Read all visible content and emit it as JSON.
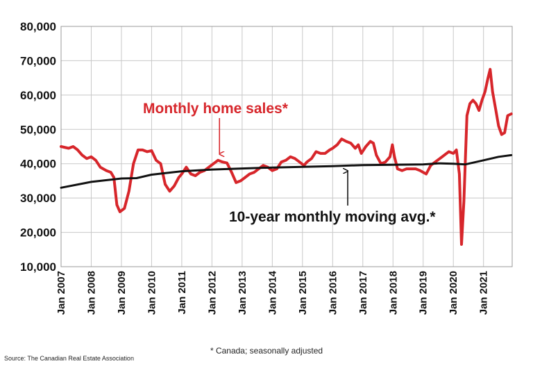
{
  "chart_data": {
    "type": "line",
    "title": "",
    "xlabel": "",
    "ylabel": "",
    "ylim": [
      10000,
      80000
    ],
    "yticks": [
      "10,000",
      "20,000",
      "30,000",
      "40,000",
      "50,000",
      "60,000",
      "70,000",
      "80,000"
    ],
    "ytick_values": [
      10000,
      20000,
      30000,
      40000,
      50000,
      60000,
      70000,
      80000
    ],
    "xticks": [
      "Jan 2007",
      "Jan 2008",
      "Jan 2009",
      "Jan 2010",
      "Jan 2011",
      "Jan 2012",
      "Jan 2013",
      "Jan 2014",
      "Jan 2015",
      "Jan 2016",
      "Jan 2017",
      "Jan 2018",
      "Jan 2019",
      "Jan 2020",
      "Jan 2021"
    ],
    "xtick_values": [
      2007,
      2008,
      2009,
      2010,
      2011,
      2012,
      2013,
      2014,
      2015,
      2016,
      2017,
      2018,
      2019,
      2020,
      2021
    ],
    "xlim": [
      2007,
      2021.95
    ],
    "grid": true,
    "series": [
      {
        "name": "Monthly home sales*",
        "color": "#d7262b",
        "points": [
          [
            2007.0,
            45000
          ],
          [
            2007.25,
            44500
          ],
          [
            2007.4,
            45000
          ],
          [
            2007.55,
            44000
          ],
          [
            2007.7,
            42500
          ],
          [
            2007.85,
            41500
          ],
          [
            2008.0,
            42000
          ],
          [
            2008.15,
            41000
          ],
          [
            2008.3,
            39000
          ],
          [
            2008.5,
            38000
          ],
          [
            2008.65,
            37500
          ],
          [
            2008.75,
            36000
          ],
          [
            2008.85,
            28000
          ],
          [
            2008.95,
            26000
          ],
          [
            2009.1,
            27000
          ],
          [
            2009.25,
            32000
          ],
          [
            2009.4,
            40000
          ],
          [
            2009.55,
            44000
          ],
          [
            2009.7,
            44000
          ],
          [
            2009.85,
            43500
          ],
          [
            2010.0,
            43800
          ],
          [
            2010.15,
            41000
          ],
          [
            2010.3,
            40000
          ],
          [
            2010.45,
            34000
          ],
          [
            2010.6,
            32000
          ],
          [
            2010.75,
            33500
          ],
          [
            2010.9,
            36000
          ],
          [
            2011.0,
            37000
          ],
          [
            2011.15,
            39000
          ],
          [
            2011.3,
            37000
          ],
          [
            2011.45,
            36500
          ],
          [
            2011.6,
            37500
          ],
          [
            2011.75,
            38000
          ],
          [
            2011.9,
            39000
          ],
          [
            2012.05,
            40000
          ],
          [
            2012.2,
            41000
          ],
          [
            2012.35,
            40500
          ],
          [
            2012.5,
            40200
          ],
          [
            2012.65,
            37500
          ],
          [
            2012.8,
            34500
          ],
          [
            2012.95,
            35000
          ],
          [
            2013.1,
            36000
          ],
          [
            2013.25,
            37000
          ],
          [
            2013.4,
            37500
          ],
          [
            2013.55,
            38500
          ],
          [
            2013.7,
            39500
          ],
          [
            2013.85,
            39000
          ],
          [
            2014.0,
            38000
          ],
          [
            2014.15,
            38500
          ],
          [
            2014.3,
            40500
          ],
          [
            2014.45,
            41000
          ],
          [
            2014.6,
            42000
          ],
          [
            2014.75,
            41500
          ],
          [
            2014.9,
            40500
          ],
          [
            2015.05,
            39500
          ],
          [
            2015.15,
            40500
          ],
          [
            2015.3,
            41500
          ],
          [
            2015.45,
            43500
          ],
          [
            2015.6,
            43000
          ],
          [
            2015.75,
            43000
          ],
          [
            2015.9,
            44000
          ],
          [
            2016.0,
            44500
          ],
          [
            2016.15,
            45500
          ],
          [
            2016.3,
            47200
          ],
          [
            2016.45,
            46500
          ],
          [
            2016.6,
            46000
          ],
          [
            2016.75,
            44500
          ],
          [
            2016.85,
            45500
          ],
          [
            2016.95,
            43000
          ],
          [
            2017.1,
            45000
          ],
          [
            2017.25,
            46500
          ],
          [
            2017.35,
            46000
          ],
          [
            2017.45,
            42500
          ],
          [
            2017.6,
            40000
          ],
          [
            2017.75,
            40500
          ],
          [
            2017.9,
            42000
          ],
          [
            2017.98,
            45500
          ],
          [
            2018.05,
            42000
          ],
          [
            2018.15,
            38500
          ],
          [
            2018.3,
            38000
          ],
          [
            2018.45,
            38500
          ],
          [
            2018.6,
            38500
          ],
          [
            2018.75,
            38500
          ],
          [
            2018.9,
            38000
          ],
          [
            2019.0,
            37500
          ],
          [
            2019.1,
            37000
          ],
          [
            2019.25,
            39500
          ],
          [
            2019.4,
            40500
          ],
          [
            2019.55,
            41500
          ],
          [
            2019.7,
            42500
          ],
          [
            2019.85,
            43500
          ],
          [
            2020.0,
            43000
          ],
          [
            2020.1,
            44000
          ],
          [
            2020.2,
            37000
          ],
          [
            2020.27,
            16500
          ],
          [
            2020.35,
            29000
          ],
          [
            2020.45,
            54000
          ],
          [
            2020.55,
            57500
          ],
          [
            2020.65,
            58500
          ],
          [
            2020.75,
            57500
          ],
          [
            2020.85,
            55500
          ],
          [
            2020.95,
            58500
          ],
          [
            2021.05,
            61000
          ],
          [
            2021.15,
            65000
          ],
          [
            2021.22,
            67500
          ],
          [
            2021.3,
            61000
          ],
          [
            2021.4,
            56000
          ],
          [
            2021.5,
            51000
          ],
          [
            2021.6,
            48500
          ],
          [
            2021.7,
            49000
          ],
          [
            2021.8,
            54000
          ],
          [
            2021.92,
            54500
          ]
        ]
      },
      {
        "name": "10-year monthly moving avg.*",
        "color": "#111111",
        "points": [
          [
            2007.0,
            33000
          ],
          [
            2008.0,
            34700
          ],
          [
            2009.0,
            35700
          ],
          [
            2009.5,
            35800
          ],
          [
            2010.0,
            36800
          ],
          [
            2011.0,
            37800
          ],
          [
            2012.0,
            38300
          ],
          [
            2013.0,
            38600
          ],
          [
            2014.0,
            38900
          ],
          [
            2015.0,
            39100
          ],
          [
            2016.0,
            39300
          ],
          [
            2017.0,
            39600
          ],
          [
            2018.0,
            39700
          ],
          [
            2019.0,
            39800
          ],
          [
            2019.5,
            40100
          ],
          [
            2020.0,
            40000
          ],
          [
            2020.4,
            39800
          ],
          [
            2021.0,
            41000
          ],
          [
            2021.5,
            42000
          ],
          [
            2021.92,
            42500
          ]
        ]
      }
    ],
    "annotations": [
      {
        "text": "Monthly home sales*",
        "color": "#d7262b",
        "arrow_to": [
          2012.25,
          40800
        ]
      },
      {
        "text": "10-year monthly moving avg.*",
        "color": "#111111",
        "arrow_to": [
          2016.5,
          39500
        ]
      }
    ]
  },
  "footnote": "* Canada; seasonally adjusted",
  "source": "Source: The Canadian Real Estate Association"
}
